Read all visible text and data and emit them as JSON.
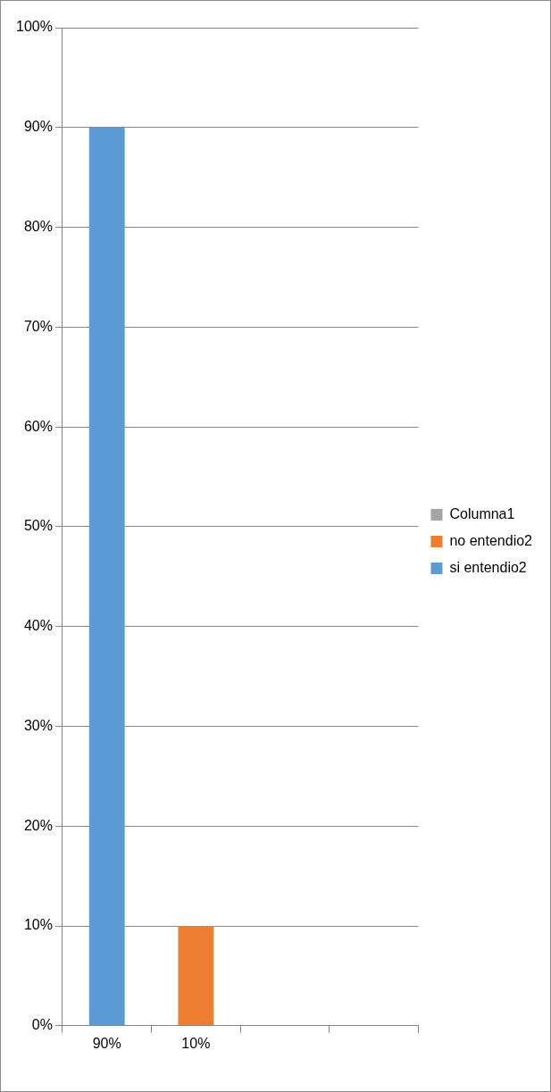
{
  "chart_data": {
    "type": "bar",
    "categories": [
      "90%",
      "10%",
      null,
      null
    ],
    "series": [
      {
        "name": "si entendio2",
        "color": "#5b9bd5",
        "values": [
          90,
          null,
          null,
          null
        ]
      },
      {
        "name": "no entendio2",
        "color": "#ed7d31",
        "values": [
          null,
          10,
          null,
          null
        ]
      },
      {
        "name": "Columna1",
        "color": "#a5a5a5",
        "values": [
          null,
          null,
          null,
          null
        ]
      }
    ],
    "stacked": true,
    "ylim": [
      0,
      100
    ],
    "yticks": [
      {
        "value": 0,
        "label": "0%"
      },
      {
        "value": 10,
        "label": "10%"
      },
      {
        "value": 20,
        "label": "20%"
      },
      {
        "value": 30,
        "label": "30%"
      },
      {
        "value": 40,
        "label": "40%"
      },
      {
        "value": 50,
        "label": "50%"
      },
      {
        "value": 60,
        "label": "60%"
      },
      {
        "value": 70,
        "label": "70%"
      },
      {
        "value": 80,
        "label": "80%"
      },
      {
        "value": 90,
        "label": "90%"
      },
      {
        "value": 100,
        "label": "100%"
      }
    ],
    "grid": "y",
    "legend": "right"
  }
}
